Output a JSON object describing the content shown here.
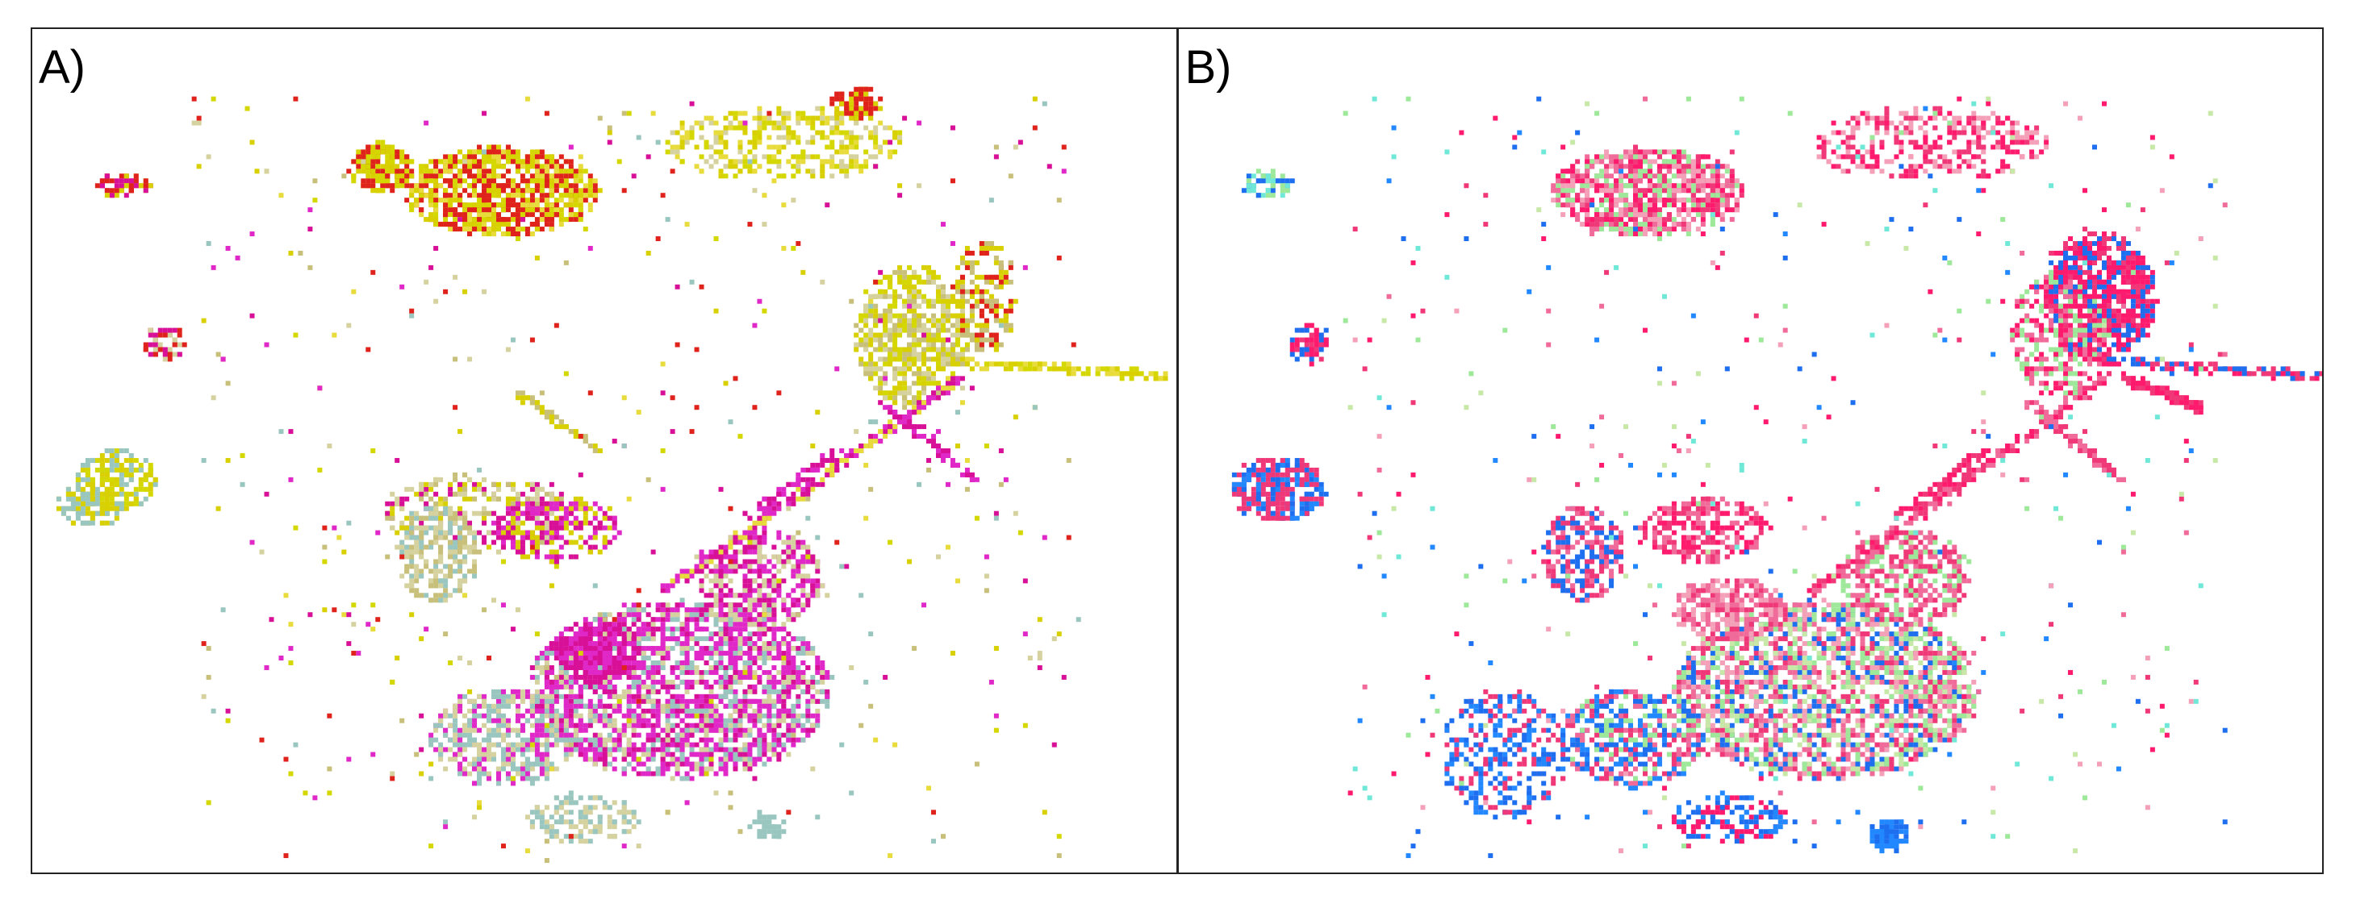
{
  "figure": {
    "panels": [
      {
        "label": "A)",
        "palette": [
          "#d8d000",
          "#d4d800",
          "#e0221c",
          "#d81098",
          "#e028c8",
          "#9ac6c0",
          "#d6d2a0",
          "#c8c07a",
          "#e8dc3c"
        ]
      },
      {
        "label": "B)",
        "palette": [
          "#f03878",
          "#ff1a6e",
          "#f06a9a",
          "#1e6ef0",
          "#2288ff",
          "#9ee89a",
          "#c8e8a8",
          "#70e8d8",
          "#f4a0b8"
        ]
      }
    ]
  }
}
